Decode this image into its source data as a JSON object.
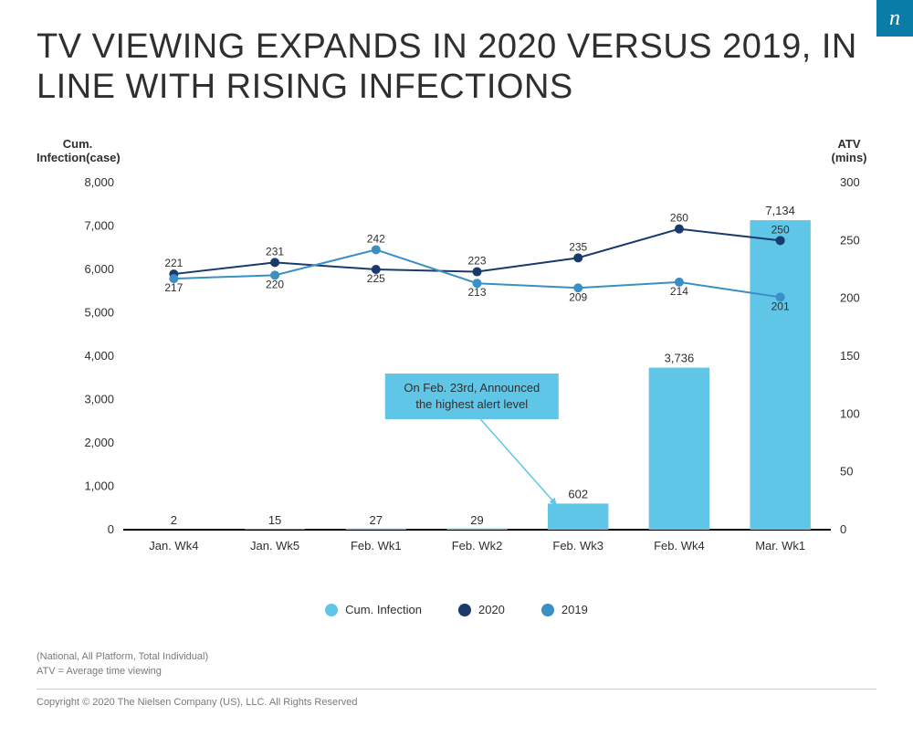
{
  "logo": "n",
  "title": "TV VIEWING EXPANDS IN 2020 VERSUS 2019, IN LINE WITH RISING INFECTIONS",
  "chart": {
    "type": "combo-bar-line-dual-axis",
    "background_color": "#ffffff",
    "y_left": {
      "label": "Cum.\nInfection(case)",
      "min": 0,
      "max": 8000,
      "tick_step": 1000,
      "ticks": [
        "0",
        "1,000",
        "2,000",
        "3,000",
        "4,000",
        "5,000",
        "6,000",
        "7,000",
        "8,000"
      ],
      "label_fontsize": 13
    },
    "y_right": {
      "label": "ATV\n(mins)",
      "min": 0,
      "max": 300,
      "tick_step": 50,
      "ticks": [
        "0",
        "50",
        "100",
        "150",
        "200",
        "250",
        "300"
      ],
      "label_fontsize": 13
    },
    "categories": [
      "Jan. Wk4",
      "Jan. Wk5",
      "Feb. Wk1",
      "Feb. Wk2",
      "Feb. Wk3",
      "Feb. Wk4",
      "Mar. Wk1"
    ],
    "bars": {
      "name": "Cum. Infection",
      "values": [
        2,
        15,
        27,
        29,
        602,
        3736,
        7134
      ],
      "value_labels": [
        "2",
        "15",
        "27",
        "29",
        "602",
        "3,736",
        "7,134"
      ],
      "color": "#5fc6e8",
      "bar_width_ratio": 0.6
    },
    "lines": [
      {
        "name": "2020",
        "values": [
          221,
          231,
          225,
          223,
          235,
          260,
          250
        ],
        "color": "#1a3a6e",
        "marker": "circle",
        "marker_size": 5,
        "line_width": 2
      },
      {
        "name": "2019",
        "values": [
          217,
          220,
          242,
          213,
          209,
          214,
          201
        ],
        "color": "#3a8fc4",
        "marker": "circle",
        "marker_size": 5,
        "line_width": 2
      }
    ],
    "annotation": {
      "text_line1": "On Feb. 23rd, Announced",
      "text_line2": "the highest alert level",
      "box_color": "#5fc6e8",
      "target_category_index": 4
    },
    "legend_items": [
      {
        "label": "Cum. Infection",
        "swatch": "bar"
      },
      {
        "label": "2020",
        "swatch": "2020"
      },
      {
        "label": "2019",
        "swatch": "2019"
      }
    ]
  },
  "footnotes": {
    "line1": "(National, All Platform, Total Individual)",
    "line2": "ATV = Average time viewing",
    "copyright": "Copyright © 2020 The Nielsen Company (US), LLC. All Rights Reserved"
  }
}
